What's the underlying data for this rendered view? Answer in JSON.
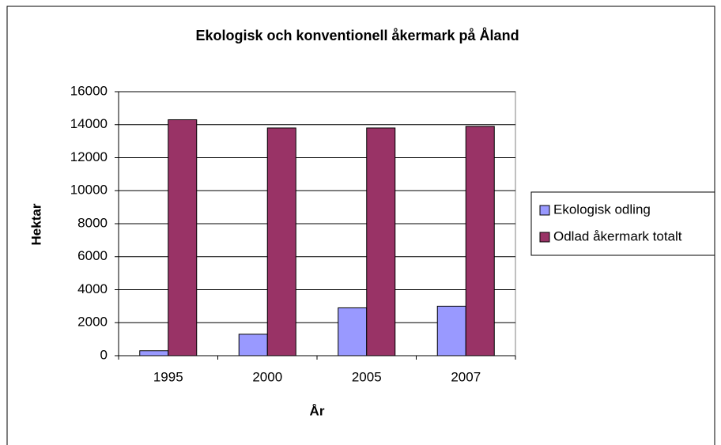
{
  "chart_data": {
    "type": "bar",
    "title": "Ekologisk och konventionell åkermark på Åland",
    "x_label": "År",
    "y_label": "Hektar",
    "categories": [
      "1995",
      "2000",
      "2005",
      "2007"
    ],
    "series": [
      {
        "name": "Ekologisk odling",
        "color": "#9999ff",
        "values": [
          300,
          1300,
          2900,
          3000
        ]
      },
      {
        "name": "Odlad åkermark totalt",
        "color": "#993366",
        "values": [
          14300,
          13800,
          13800,
          13900
        ]
      }
    ],
    "ylim": [
      0,
      16000
    ],
    "yticks": [
      0,
      2000,
      4000,
      6000,
      8000,
      10000,
      12000,
      14000,
      16000
    ],
    "grid": true,
    "legend": "right"
  }
}
